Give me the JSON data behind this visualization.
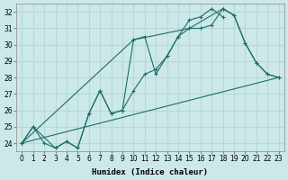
{
  "xlabel": "Humidex (Indice chaleur)",
  "ylabel": "",
  "background_color": "#cde8e8",
  "grid_color": "#b8d8d8",
  "line_color": "#1a6e6a",
  "xlim": [
    -0.5,
    23.5
  ],
  "ylim": [
    23.5,
    32.5
  ],
  "xticks": [
    0,
    1,
    2,
    3,
    4,
    5,
    6,
    7,
    8,
    9,
    10,
    11,
    12,
    13,
    14,
    15,
    16,
    17,
    18,
    19,
    20,
    21,
    22,
    23
  ],
  "yticks": [
    24,
    25,
    26,
    27,
    28,
    29,
    30,
    31,
    32
  ],
  "series1_x": [
    0,
    1,
    2,
    3,
    4,
    5,
    6,
    7,
    8,
    9,
    10,
    11,
    12,
    13,
    14,
    15,
    16,
    17,
    18
  ],
  "series1_y": [
    24.0,
    25.0,
    24.0,
    23.7,
    24.1,
    23.7,
    25.8,
    27.2,
    25.8,
    26.0,
    27.2,
    28.2,
    28.5,
    29.3,
    30.5,
    31.5,
    31.7,
    32.2,
    31.7
  ],
  "series2_x": [
    0,
    1,
    3,
    4,
    5,
    6,
    7,
    8,
    9,
    10,
    11,
    12,
    13,
    14,
    15,
    16,
    17,
    18,
    19,
    20,
    21,
    22,
    23
  ],
  "series2_y": [
    24.0,
    25.0,
    23.7,
    24.1,
    23.7,
    25.8,
    27.2,
    25.8,
    26.0,
    30.3,
    30.5,
    28.2,
    29.3,
    30.5,
    31.0,
    31.0,
    31.2,
    32.2,
    31.8,
    30.1,
    28.9,
    28.2,
    28.0
  ],
  "series3_x": [
    0,
    23
  ],
  "series3_y": [
    24.0,
    28.0
  ],
  "series_outline_x": [
    0,
    10,
    15,
    18,
    19,
    20,
    21,
    22,
    23
  ],
  "series_outline_y": [
    24.0,
    30.3,
    31.0,
    32.2,
    31.8,
    30.1,
    28.9,
    28.2,
    28.0
  ]
}
